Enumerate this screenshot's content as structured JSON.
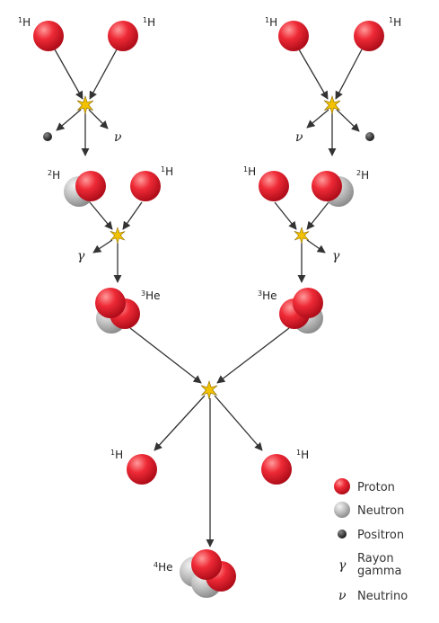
{
  "diagram": {
    "isotopes": {
      "h1": {
        "mass": "1",
        "symbol": "H"
      },
      "h2": {
        "mass": "2",
        "symbol": "H"
      },
      "he3": {
        "mass": "3",
        "symbol": "He"
      },
      "he4": {
        "mass": "4",
        "symbol": "He"
      }
    },
    "symbols": {
      "gamma": "γ",
      "neutrino": "ν"
    },
    "legend": [
      {
        "particle": "proton",
        "label": "Proton"
      },
      {
        "particle": "neutron",
        "label": "Neutron"
      },
      {
        "particle": "positron",
        "label": "Positron"
      },
      {
        "particle": "gamma",
        "label_line1": "Rayon",
        "label_line2": "gamma"
      },
      {
        "particle": "neutrino",
        "label": "Neutrino"
      }
    ]
  },
  "colors": {
    "proton": "#e8192c",
    "neutron": "#b8b8b8",
    "positron": "#333333",
    "burst": "#f2c200",
    "arrow": "#333333"
  }
}
